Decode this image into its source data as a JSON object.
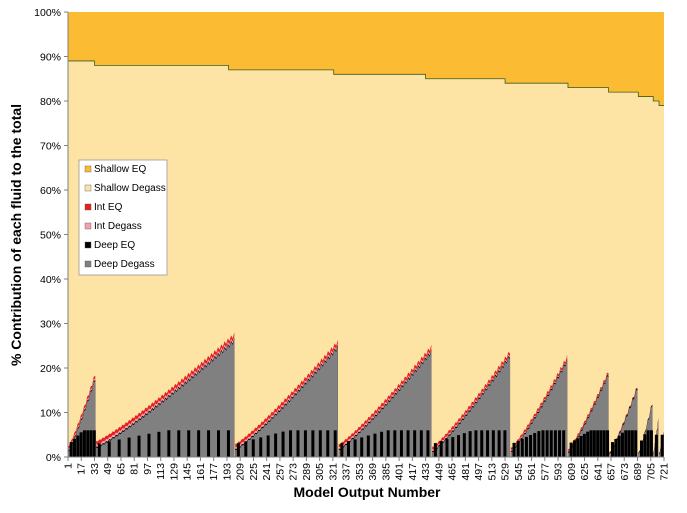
{
  "chart_data": {
    "type": "area",
    "stacked": true,
    "normalized": true,
    "title": "",
    "xlabel": "Model Output Number",
    "ylabel": "% Contribution of each fluid to the total",
    "x_range": [
      1,
      721
    ],
    "ylim": [
      0,
      100
    ],
    "y_ticks": [
      "0%",
      "10%",
      "20%",
      "30%",
      "40%",
      "50%",
      "60%",
      "70%",
      "80%",
      "90%",
      "100%"
    ],
    "x_ticks": [
      "1",
      "17",
      "33",
      "49",
      "65",
      "81",
      "97",
      "113",
      "129",
      "145",
      "161",
      "177",
      "193",
      "209",
      "225",
      "241",
      "257",
      "273",
      "289",
      "305",
      "321",
      "337",
      "353",
      "369",
      "385",
      "401",
      "417",
      "433",
      "449",
      "465",
      "481",
      "497",
      "513",
      "529",
      "545",
      "561",
      "577",
      "593",
      "609",
      "625",
      "641",
      "657",
      "673",
      "689",
      "705",
      "721"
    ],
    "grid": {
      "horizontal": false,
      "vertical": false
    },
    "legend": {
      "placement": "left-center",
      "entries": [
        "Shallow EQ",
        "Shallow Degass",
        "Int EQ",
        "Int Degass",
        "Deep EQ",
        "Deep Degass"
      ]
    },
    "series": [
      {
        "name": "Deep Degass",
        "color": "#808080"
      },
      {
        "name": "Deep EQ",
        "color": "#000000"
      },
      {
        "name": "Int Degass",
        "color": "#f4a0b0"
      },
      {
        "name": "Int EQ",
        "color": "#e8201c"
      },
      {
        "name": "Shallow Degass",
        "color": "#fde4a4"
      },
      {
        "name": "Shallow EQ",
        "color": "#fbbc33"
      }
    ],
    "deep_cycles": [
      {
        "start": 1,
        "end": 34,
        "start_value": 1.0,
        "end_value": 17.5,
        "int_band": 1.2
      },
      {
        "start": 35,
        "end": 202,
        "start_value": 2.0,
        "end_value": 26.0,
        "int_band": 1.5
      },
      {
        "start": 203,
        "end": 327,
        "start_value": 1.5,
        "end_value": 24.5,
        "int_band": 1.4
      },
      {
        "start": 328,
        "end": 440,
        "start_value": 1.5,
        "end_value": 23.5,
        "int_band": 1.3
      },
      {
        "start": 441,
        "end": 535,
        "start_value": 1.0,
        "end_value": 22.5,
        "int_band": 1.2
      },
      {
        "start": 536,
        "end": 604,
        "start_value": 1.0,
        "end_value": 21.5,
        "int_band": 1.0
      },
      {
        "start": 605,
        "end": 654,
        "start_value": 0.8,
        "end_value": 18.5,
        "int_band": 0.8
      },
      {
        "start": 655,
        "end": 689,
        "start_value": 0.5,
        "end_value": 15.5,
        "int_band": 0.5
      },
      {
        "start": 690,
        "end": 707,
        "start_value": 0.5,
        "end_value": 12.0,
        "int_band": 0.3
      },
      {
        "start": 708,
        "end": 714,
        "start_value": 0.5,
        "end_value": 8.0,
        "int_band": 0.2
      },
      {
        "start": 715,
        "end": 721,
        "start_value": 0.5,
        "end_value": 5.0,
        "int_band": 0.2
      }
    ],
    "shallow_eq_boundary": [
      {
        "from": 1,
        "to": 33,
        "value": 89
      },
      {
        "from": 33,
        "to": 195,
        "value": 88
      },
      {
        "from": 195,
        "to": 322,
        "value": 87
      },
      {
        "from": 322,
        "to": 433,
        "value": 86
      },
      {
        "from": 433,
        "to": 529,
        "value": 85
      },
      {
        "from": 529,
        "to": 605,
        "value": 84
      },
      {
        "from": 605,
        "to": 654,
        "value": 83
      },
      {
        "from": 654,
        "to": 690,
        "value": 82
      },
      {
        "from": 690,
        "to": 708,
        "value": 81
      },
      {
        "from": 708,
        "to": 715,
        "value": 80
      },
      {
        "from": 715,
        "to": 721,
        "value": 79
      }
    ]
  }
}
